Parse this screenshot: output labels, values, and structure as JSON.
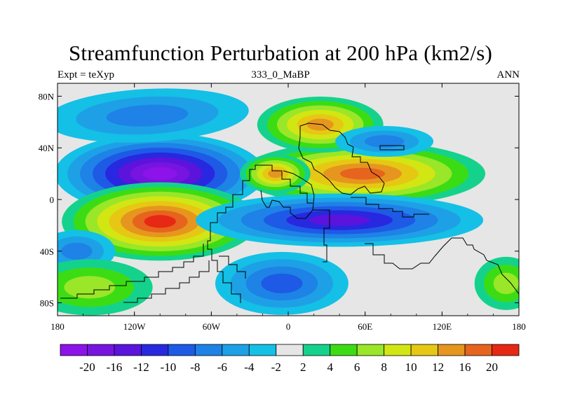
{
  "chart_data": {
    "type": "heatmap",
    "title": "Streamfunction Perturbation at 200 hPa (km2/s)",
    "subtitle_left": "Expt = teXyp",
    "subtitle_center": "333_0_MaBP",
    "subtitle_right": "ANN",
    "x_ticks": [
      "180",
      "120W",
      "60W",
      "0",
      "60E",
      "120E",
      "180"
    ],
    "y_ticks": [
      "80N",
      "40N",
      "0",
      "40S",
      "80S"
    ],
    "xlim": [
      -180,
      180
    ],
    "ylim": [
      -90,
      90
    ],
    "colorbar_labels": [
      "-20",
      "-16",
      "-12",
      "-10",
      "-8",
      "-6",
      "-4",
      "-2",
      "2",
      "4",
      "6",
      "8",
      "10",
      "12",
      "16",
      "20"
    ],
    "colorbar_colors": [
      "#8c14e8",
      "#7814e0",
      "#5a14dc",
      "#2828e0",
      "#1e5ae6",
      "#1e82e6",
      "#1ea0e6",
      "#14c0e6",
      "#e6e6e6",
      "#14d28c",
      "#3cdc14",
      "#9ae628",
      "#d2e614",
      "#e6c814",
      "#e6961e",
      "#e6641e",
      "#e62814"
    ],
    "features": [
      {
        "lon": -100,
        "lat": 20,
        "value": -20
      },
      {
        "lon": -100,
        "lat": -17,
        "value": 20
      },
      {
        "lon": 58,
        "lat": 20,
        "value": 16
      },
      {
        "lon": 25,
        "lat": 58,
        "value": 12
      },
      {
        "lon": -10,
        "lat": 20,
        "value": 12
      },
      {
        "lon": -110,
        "lat": 65,
        "value": -6
      },
      {
        "lon": 40,
        "lat": -16,
        "value": -12
      },
      {
        "lon": -5,
        "lat": -65,
        "value": -8
      },
      {
        "lon": -165,
        "lat": -40,
        "value": -6
      },
      {
        "lon": -155,
        "lat": -68,
        "value": 6
      },
      {
        "lon": 170,
        "lat": -65,
        "value": 6
      },
      {
        "lon": 75,
        "lat": 45,
        "value": -6
      }
    ]
  }
}
